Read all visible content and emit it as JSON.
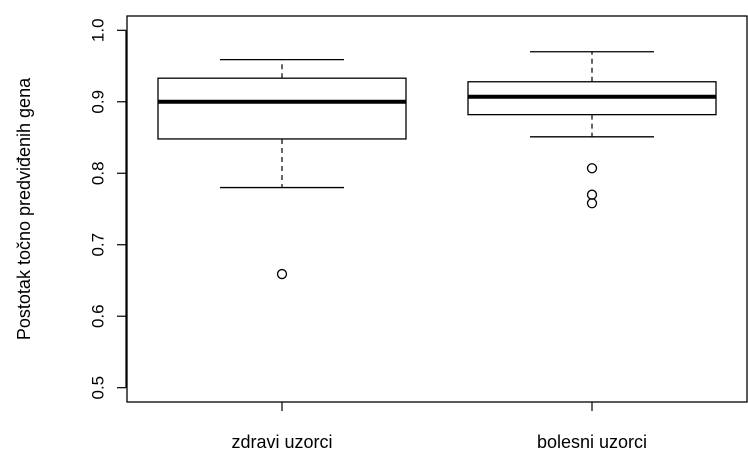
{
  "chart_data": {
    "type": "boxplot",
    "title": "",
    "xlabel": "",
    "ylabel": "Postotak točno predviđenih gena",
    "ylim": [
      0.48,
      1.02
    ],
    "yticks": [
      0.5,
      0.6,
      0.7,
      0.8,
      0.9,
      1.0
    ],
    "ytick_labels": [
      "0.5",
      "0.6",
      "0.7",
      "0.8",
      "0.9",
      "1.0"
    ],
    "grid": false,
    "legend": "none",
    "categories": [
      "zdravi uzorci",
      "bolesni uzorci"
    ],
    "boxes": [
      {
        "category": "zdravi uzorci",
        "whisker_low": 0.78,
        "q1": 0.848,
        "median": 0.9,
        "q3": 0.933,
        "whisker_high": 0.959,
        "outliers": [
          0.659
        ]
      },
      {
        "category": "bolesni uzorci",
        "whisker_low": 0.851,
        "q1": 0.882,
        "median": 0.907,
        "q3": 0.928,
        "whisker_high": 0.97,
        "outliers": [
          0.807,
          0.77,
          0.758
        ]
      }
    ],
    "colors": {
      "stroke": "#000000",
      "background": "#ffffff"
    }
  }
}
